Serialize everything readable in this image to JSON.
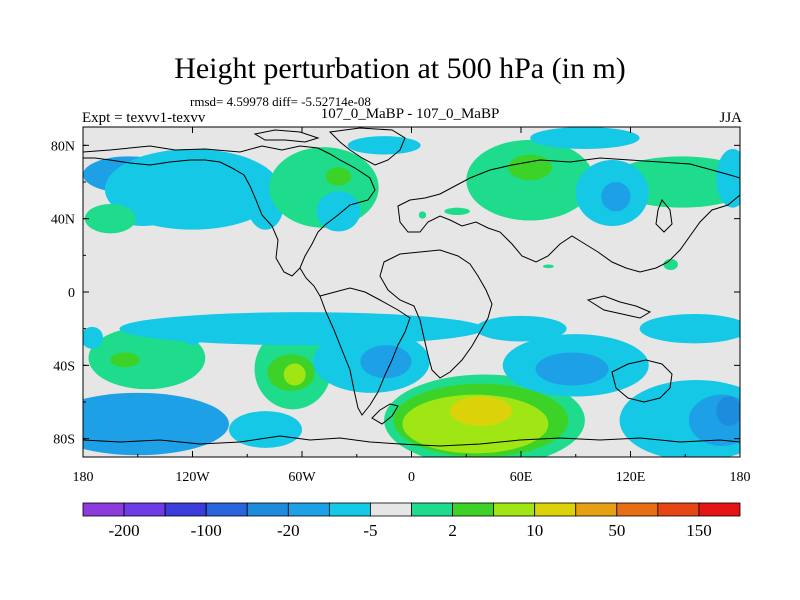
{
  "header": {
    "title": "Height perturbation at 500 hPa (in m)",
    "stats": "rmsd= 4.59978 diff= -5.52714e-08",
    "left_label": "Expt = texvv1-texvv",
    "center_label": "107_0_MaBP - 107_0_MaBP",
    "right_label": "JJA"
  },
  "chart_data": {
    "type": "heatmap",
    "title": "Height perturbation at 500 hPa (in m)",
    "x_ticks": [
      "180",
      "120W",
      "60W",
      "0",
      "60E",
      "120E",
      "180"
    ],
    "x_tick_values": [
      -180,
      -120,
      -60,
      0,
      60,
      120,
      180
    ],
    "y_ticks": [
      "80N",
      "40N",
      "0",
      "40S",
      "80S"
    ],
    "y_tick_values": [
      80,
      40,
      0,
      -40,
      -80
    ],
    "xlim": [
      -180,
      180
    ],
    "ylim": [
      -90,
      90
    ],
    "colorbar": {
      "colors": [
        "#8c3cdc",
        "#6e3ce6",
        "#3c3cdc",
        "#2864dc",
        "#1e8cdc",
        "#1ea0e6",
        "#14c8e6",
        "#e6e6e6",
        "#1edc8c",
        "#3cd228",
        "#a0e614",
        "#dcd20a",
        "#e6a014",
        "#e66e14",
        "#e64614",
        "#e61414"
      ],
      "labels": [
        "-200",
        "-100",
        "-20",
        "-5",
        "2",
        "10",
        "50",
        "150"
      ],
      "label_after_box": [
        1,
        3,
        5,
        7,
        9,
        11,
        13,
        15
      ]
    },
    "features": [
      {
        "lon": -155,
        "lat": 64,
        "rx": 25,
        "ry": 10,
        "level": -2
      },
      {
        "lon": -120,
        "lat": 56,
        "rx": 48,
        "ry": 22,
        "level": -1
      },
      {
        "lon": -147,
        "lat": 43,
        "rx": 17,
        "ry": 7,
        "level": -1
      },
      {
        "lon": -165,
        "lat": 40,
        "rx": 14,
        "ry": 8,
        "level": 1
      },
      {
        "lon": -80,
        "lat": 48,
        "rx": 10,
        "ry": 14,
        "level": -1
      },
      {
        "lon": -48,
        "lat": 57,
        "rx": 30,
        "ry": 22,
        "level": 1
      },
      {
        "lon": -40,
        "lat": 63,
        "rx": 7,
        "ry": 5,
        "level": 2
      },
      {
        "lon": -40,
        "lat": 44,
        "rx": 12,
        "ry": 11,
        "level": -1
      },
      {
        "lon": -15,
        "lat": 80,
        "rx": 20,
        "ry": 5,
        "level": -1
      },
      {
        "lon": 6,
        "lat": 42,
        "rx": 2,
        "ry": 2,
        "level": 1
      },
      {
        "lon": 25,
        "lat": 44,
        "rx": 7,
        "ry": 2,
        "level": 1
      },
      {
        "lon": 65,
        "lat": 61,
        "rx": 35,
        "ry": 22,
        "level": 1
      },
      {
        "lon": 65,
        "lat": 68,
        "rx": 12,
        "ry": 7,
        "level": 2
      },
      {
        "lon": 68,
        "lat": 50,
        "rx": 12,
        "ry": 5,
        "level": 1
      },
      {
        "lon": 95,
        "lat": 84,
        "rx": 30,
        "ry": 6,
        "level": -1
      },
      {
        "lon": 148,
        "lat": 60,
        "rx": 40,
        "ry": 14,
        "level": 1
      },
      {
        "lon": 110,
        "lat": 54,
        "rx": 20,
        "ry": 18,
        "level": -1
      },
      {
        "lon": 112,
        "lat": 52,
        "rx": 8,
        "ry": 8,
        "level": -2
      },
      {
        "lon": 176,
        "lat": 62,
        "rx": 9,
        "ry": 16,
        "level": -1
      },
      {
        "lon": 75,
        "lat": 14,
        "rx": 3,
        "ry": 1,
        "level": 1
      },
      {
        "lon": 142,
        "lat": 15,
        "rx": 4,
        "ry": 3,
        "level": 1
      },
      {
        "lon": -145,
        "lat": -36,
        "rx": 32,
        "ry": 17,
        "level": 1
      },
      {
        "lon": -157,
        "lat": -37,
        "rx": 8,
        "ry": 4,
        "level": 2
      },
      {
        "lon": -175,
        "lat": -25,
        "rx": 6,
        "ry": 6,
        "level": -1
      },
      {
        "lon": -120,
        "lat": -22,
        "rx": 6,
        "ry": 7,
        "level": -1
      },
      {
        "lon": -150,
        "lat": -72,
        "rx": 50,
        "ry": 17,
        "level": -2
      },
      {
        "lon": -65,
        "lat": -42,
        "rx": 21,
        "ry": 22,
        "level": 1
      },
      {
        "lon": -66,
        "lat": -44,
        "rx": 13,
        "ry": 10,
        "level": 2
      },
      {
        "lon": -64,
        "lat": -45,
        "rx": 6,
        "ry": 6,
        "level": 3
      },
      {
        "lon": -80,
        "lat": -75,
        "rx": 20,
        "ry": 10,
        "level": -1
      },
      {
        "lon": -22,
        "lat": -38,
        "rx": 32,
        "ry": 17,
        "level": -1
      },
      {
        "lon": -14,
        "lat": -38,
        "rx": 14,
        "ry": 9,
        "level": -2
      },
      {
        "lon": -60,
        "lat": -20,
        "rx": 100,
        "ry": 9,
        "level": -1
      },
      {
        "lon": 40,
        "lat": -70,
        "rx": 55,
        "ry": 25,
        "level": 1
      },
      {
        "lon": 38,
        "lat": -70,
        "rx": 48,
        "ry": 20,
        "level": 2
      },
      {
        "lon": 35,
        "lat": -72,
        "rx": 40,
        "ry": 16,
        "level": 3
      },
      {
        "lon": 38,
        "lat": -65,
        "rx": 17,
        "ry": 8,
        "level": 4
      },
      {
        "lon": 60,
        "lat": -20,
        "rx": 25,
        "ry": 7,
        "level": -1
      },
      {
        "lon": 90,
        "lat": -40,
        "rx": 40,
        "ry": 17,
        "level": -1
      },
      {
        "lon": 88,
        "lat": -42,
        "rx": 20,
        "ry": 9,
        "level": -2
      },
      {
        "lon": 155,
        "lat": -20,
        "rx": 30,
        "ry": 8,
        "level": -1
      },
      {
        "lon": 156,
        "lat": -70,
        "rx": 42,
        "ry": 22,
        "level": -1
      },
      {
        "lon": 170,
        "lat": -70,
        "rx": 18,
        "ry": 14,
        "level": -2
      },
      {
        "lon": 174,
        "lat": -65,
        "rx": 7,
        "ry": 8,
        "level": -3
      }
    ]
  }
}
